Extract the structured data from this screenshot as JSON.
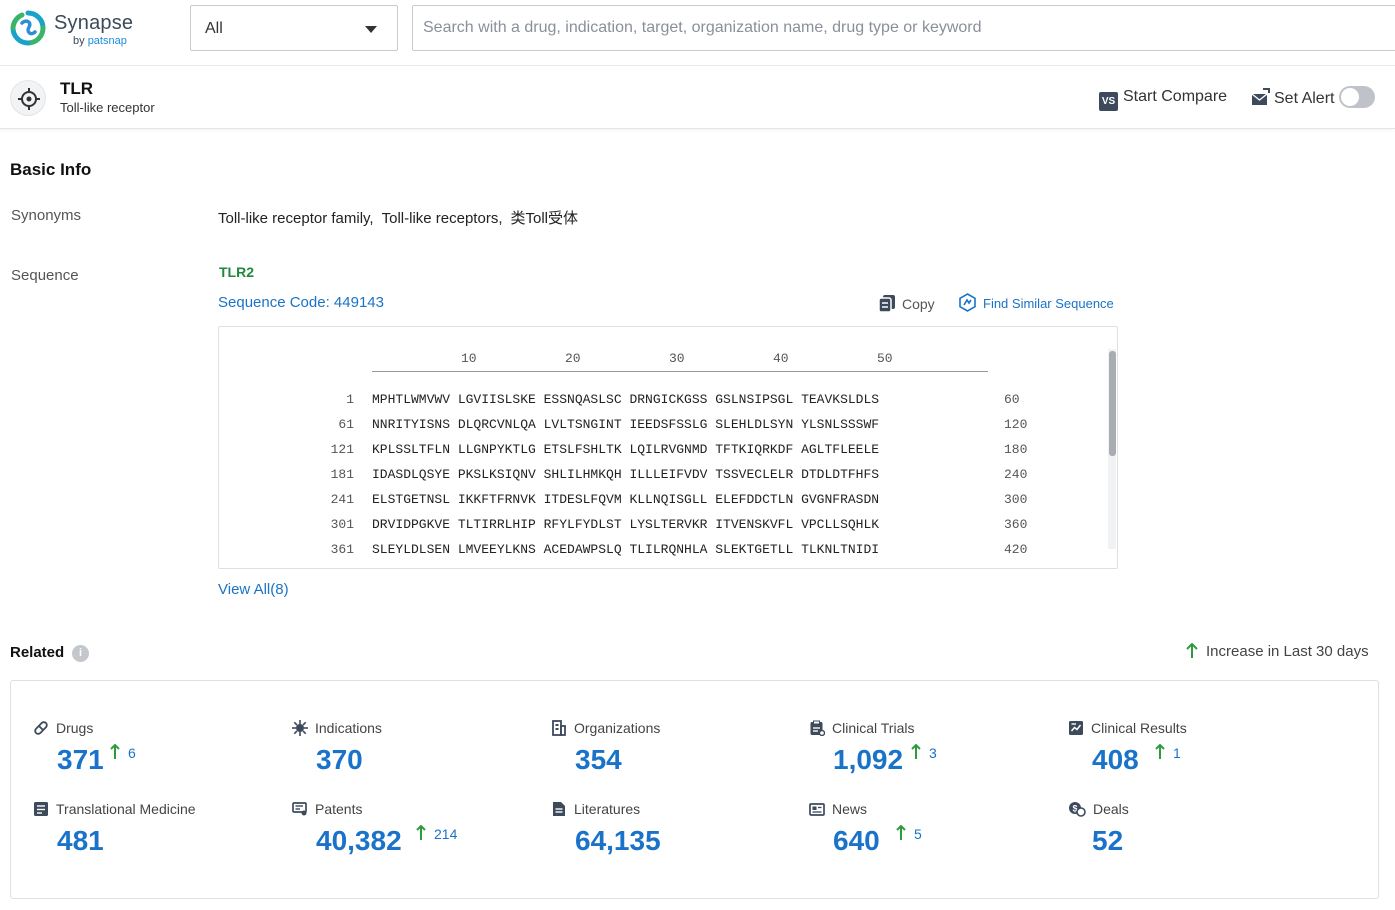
{
  "app": {
    "name": "Synapse",
    "by": "by",
    "by_brand": "patsnap"
  },
  "search": {
    "scope_value": "All",
    "placeholder": "Search with a drug, indication, target, organization name, drug type or keyword"
  },
  "entity": {
    "title": "TLR",
    "subtitle": "Toll-like receptor",
    "compare_badge": "VS",
    "compare_label": "Start Compare",
    "alert_label": "Set Alert"
  },
  "basic_info": {
    "heading": "Basic Info",
    "synonyms_label": "Synonyms",
    "synonyms": [
      "Toll-like receptor family,",
      "Toll-like receptors,",
      "类Toll受体"
    ],
    "sequence_label": "Sequence",
    "sequence_name": "TLR2",
    "sequence_code": "Sequence Code: 449143",
    "copy_label": "Copy",
    "find_similar_label": "Find Similar Sequence",
    "ruler_ticks": [
      "10",
      "20",
      "30",
      "40",
      "50"
    ],
    "rows": [
      {
        "start": "1",
        "seq": "MPHTLWMVWV LGVIISLSKE ESSNQASLSC DRNGICKGSS GSLNSIPSGL TEAVKSLDLS",
        "end": "60"
      },
      {
        "start": "61",
        "seq": "NNRITYISNS DLQRCVNLQA LVLTSNGINT IEEDSFSSLG SLEHLDLSYN YLSNLSSSWF",
        "end": "120"
      },
      {
        "start": "121",
        "seq": "KPLSSLTFLN LLGNPYKTLG ETSLFSHLTK LQILRVGNMD TFTKIQRKDF AGLTFLEELE",
        "end": "180"
      },
      {
        "start": "181",
        "seq": "IDASDLQSYE PKSLKSIQNV SHLILHMKQH ILLLEIFVDV TSSVECLELR DTDLDTFHFS",
        "end": "240"
      },
      {
        "start": "241",
        "seq": "ELSTGETNSL IKKFTFRNVK ITDESLFQVM KLLNQISGLL ELEFDDCTLN GVGNFRASDN",
        "end": "300"
      },
      {
        "start": "301",
        "seq": "DRVIDPGKVE TLTIRRLHIP RFYLFYDLST LYSLTERVKR ITVENSKVFL VPCLLSQHLK",
        "end": "360"
      },
      {
        "start": "361",
        "seq": "SLEYLDLSEN LMVEEYLKNS ACEDAWPSLQ TLILRQNHLA SLEKTGETLL TLKNLTNIDI",
        "end": "420"
      }
    ],
    "view_all": "View All(8)"
  },
  "related": {
    "heading": "Related",
    "info_glyph": "i",
    "legend": "Increase in Last 30 days",
    "accent": "#1a73c8",
    "increase_color": "#2e9b3e",
    "stats": [
      {
        "label": "Drugs",
        "icon": "pill-icon",
        "value": "371",
        "increase": "6"
      },
      {
        "label": "Indications",
        "icon": "virus-icon",
        "value": "370",
        "increase": ""
      },
      {
        "label": "Organizations",
        "icon": "building-icon",
        "value": "354",
        "increase": ""
      },
      {
        "label": "Clinical Trials",
        "icon": "clipboard-icon",
        "value": "1,092",
        "increase": "3"
      },
      {
        "label": "Clinical Results",
        "icon": "chart-doc-icon",
        "value": "408",
        "increase": "1"
      },
      {
        "label": "Translational Medicine",
        "icon": "flask-doc-icon",
        "value": "481",
        "increase": ""
      },
      {
        "label": "Patents",
        "icon": "patent-icon",
        "value": "40,382",
        "increase": "214"
      },
      {
        "label": "Literatures",
        "icon": "document-icon",
        "value": "64,135",
        "increase": ""
      },
      {
        "label": "News",
        "icon": "newspaper-icon",
        "value": "640",
        "increase": "5"
      },
      {
        "label": "Deals",
        "icon": "handshake-icon",
        "value": "52",
        "increase": ""
      }
    ]
  }
}
